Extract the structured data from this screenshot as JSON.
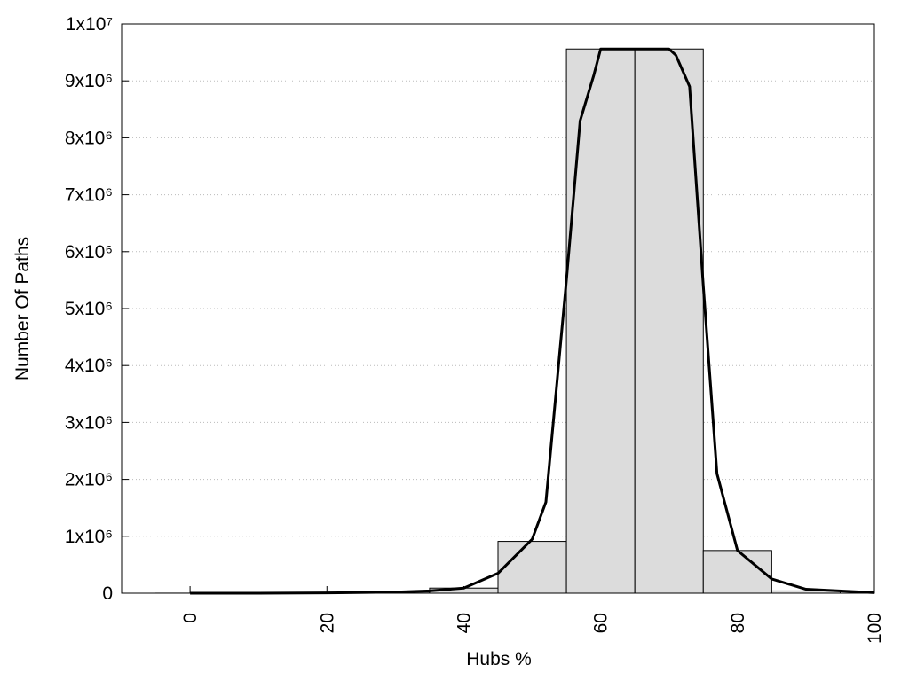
{
  "chart_data": {
    "type": "histogram",
    "xlabel": "Hubs %",
    "ylabel": "Number Of Paths",
    "bins": [
      -5,
      5,
      15,
      25,
      35,
      45,
      55,
      65,
      75,
      85,
      95
    ],
    "counts": [
      1000,
      2000,
      5000,
      20000,
      90000,
      910000,
      9560000,
      9560000,
      750000,
      40000
    ],
    "color": "#dcdcdc",
    "line": {
      "color": "#000000",
      "x": [
        0,
        10,
        20,
        30,
        35,
        40,
        45,
        50,
        52,
        55,
        57,
        59,
        60,
        65,
        70,
        71,
        73,
        75,
        77,
        79,
        80,
        85,
        90,
        100
      ],
      "values": [
        0,
        0,
        5000,
        20000,
        40000,
        90000,
        350000,
        950000,
        1600000,
        5500000,
        8300000,
        9100000,
        9560000,
        9560000,
        9560000,
        9450000,
        8900000,
        5400000,
        2100000,
        1200000,
        750000,
        250000,
        70000,
        10000
      ]
    },
    "xlim": [
      -10,
      100
    ],
    "xticks": [
      0,
      20,
      40,
      60,
      80,
      100
    ],
    "ylim": [
      0,
      10000000
    ],
    "yticks": [
      0,
      {
        "value": 1000000,
        "label": "1x10⁶"
      },
      {
        "value": 2000000,
        "label": "2x10⁶"
      },
      {
        "value": 3000000,
        "label": "3x10⁶"
      },
      {
        "value": 4000000,
        "label": "4x10⁶"
      },
      {
        "value": 5000000,
        "label": "5x10⁶"
      },
      {
        "value": 6000000,
        "label": "6x10⁶"
      },
      {
        "value": 7000000,
        "label": "7x10⁶"
      },
      {
        "value": 8000000,
        "label": "8x10⁶"
      },
      {
        "value": 9000000,
        "label": "9x10⁶"
      },
      {
        "value": 10000000,
        "label": "1x10⁷"
      }
    ],
    "grid": true
  }
}
